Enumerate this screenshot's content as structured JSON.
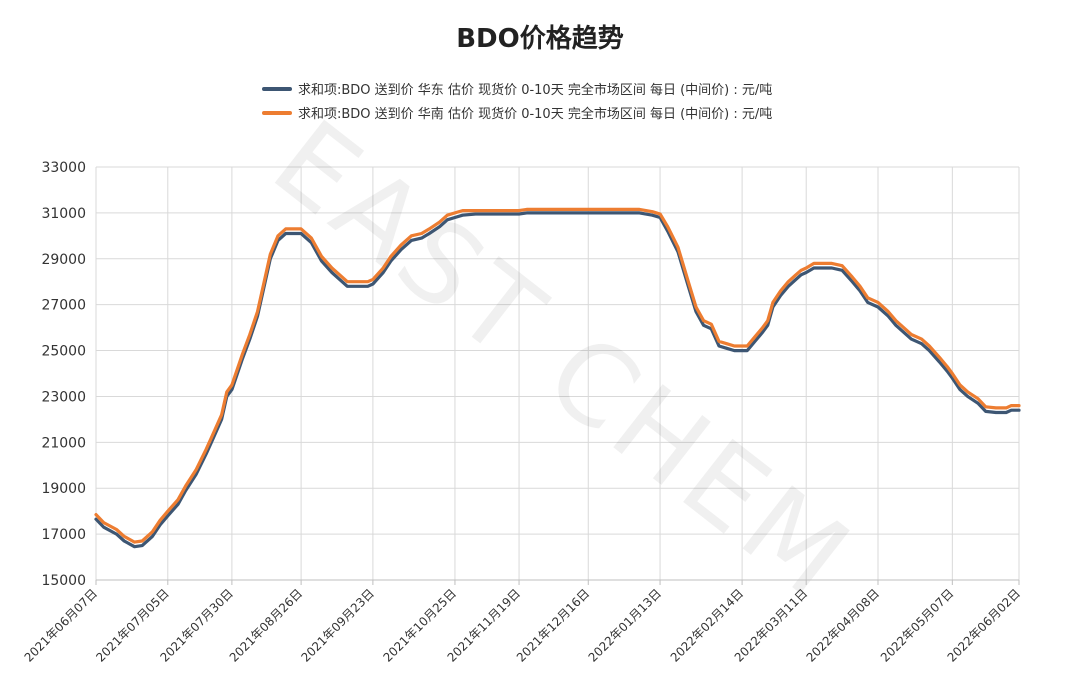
{
  "chart_data": {
    "type": "line",
    "title": "BDO价格趋势",
    "xlabel": "",
    "ylabel": "",
    "ylim": [
      15000,
      33000
    ],
    "yticks": [
      "15000",
      "17000",
      "19000",
      "21000",
      "23000",
      "25000",
      "27000",
      "29000",
      "31000",
      "33000"
    ],
    "grid": true,
    "legend_position": "top",
    "watermark": "EAST CHEM",
    "x_start": "2021-06-07",
    "x_end": "2022-06-02",
    "xticks": [
      "2021年06月07日",
      "2021年07月05日",
      "2021年07月30日",
      "2021年08月26日",
      "2021年09月23日",
      "2021年10月25日",
      "2021年11月19日",
      "2021年12月16日",
      "2022年01月13日",
      "2022年02月14日",
      "2022年03月11日",
      "2022年04月08日",
      "2022年05月07日",
      "2022年06月02日"
    ],
    "series": [
      {
        "name": "求和项:BDO 送到价 华东 估价 现货价 0-10天 完全市场区间 每日 (中间价) : 元/吨",
        "color": "#3d5673",
        "points": [
          [
            "2021-06-07",
            17650
          ],
          [
            "2021-06-10",
            17300
          ],
          [
            "2021-06-15",
            17000
          ],
          [
            "2021-06-18",
            16700
          ],
          [
            "2021-06-22",
            16450
          ],
          [
            "2021-06-25",
            16500
          ],
          [
            "2021-06-29",
            16900
          ],
          [
            "2021-07-02",
            17400
          ],
          [
            "2021-07-05",
            17800
          ],
          [
            "2021-07-09",
            18300
          ],
          [
            "2021-07-12",
            18900
          ],
          [
            "2021-07-16",
            19600
          ],
          [
            "2021-07-20",
            20500
          ],
          [
            "2021-07-22",
            21000
          ],
          [
            "2021-07-26",
            22000
          ],
          [
            "2021-07-28",
            23000
          ],
          [
            "2021-07-30",
            23300
          ],
          [
            "2021-08-03",
            24600
          ],
          [
            "2021-08-06",
            25500
          ],
          [
            "2021-08-09",
            26500
          ],
          [
            "2021-08-12",
            28000
          ],
          [
            "2021-08-14",
            29000
          ],
          [
            "2021-08-17",
            29800
          ],
          [
            "2021-08-20",
            30100
          ],
          [
            "2021-08-23",
            30100
          ],
          [
            "2021-08-26",
            30100
          ],
          [
            "2021-08-30",
            29700
          ],
          [
            "2021-09-03",
            28900
          ],
          [
            "2021-09-07",
            28400
          ],
          [
            "2021-09-10",
            28100
          ],
          [
            "2021-09-13",
            27800
          ],
          [
            "2021-09-16",
            27800
          ],
          [
            "2021-09-21",
            27800
          ],
          [
            "2021-09-23",
            27900
          ],
          [
            "2021-09-27",
            28400
          ],
          [
            "2021-09-30",
            28900
          ],
          [
            "2021-10-04",
            29400
          ],
          [
            "2021-10-08",
            29800
          ],
          [
            "2021-10-12",
            29900
          ],
          [
            "2021-10-15",
            30100
          ],
          [
            "2021-10-19",
            30400
          ],
          [
            "2021-10-22",
            30700
          ],
          [
            "2021-10-25",
            30800
          ],
          [
            "2021-10-28",
            30900
          ],
          [
            "2021-11-02",
            30950
          ],
          [
            "2021-11-10",
            30950
          ],
          [
            "2021-11-19",
            30950
          ],
          [
            "2021-11-22",
            31000
          ],
          [
            "2021-12-01",
            31000
          ],
          [
            "2021-12-16",
            31000
          ],
          [
            "2022-01-05",
            31000
          ],
          [
            "2022-01-10",
            30900
          ],
          [
            "2022-01-13",
            30800
          ],
          [
            "2022-01-16",
            30200
          ],
          [
            "2022-01-20",
            29300
          ],
          [
            "2022-01-24",
            27800
          ],
          [
            "2022-01-27",
            26700
          ],
          [
            "2022-01-30",
            26100
          ],
          [
            "2022-02-02",
            25950
          ],
          [
            "2022-02-05",
            25200
          ],
          [
            "2022-02-08",
            25100
          ],
          [
            "2022-02-11",
            25000
          ],
          [
            "2022-02-14",
            25000
          ],
          [
            "2022-02-16",
            25000
          ],
          [
            "2022-02-19",
            25400
          ],
          [
            "2022-02-22",
            25800
          ],
          [
            "2022-02-24",
            26100
          ],
          [
            "2022-02-26",
            26900
          ],
          [
            "2022-03-01",
            27400
          ],
          [
            "2022-03-04",
            27800
          ],
          [
            "2022-03-07",
            28100
          ],
          [
            "2022-03-09",
            28300
          ],
          [
            "2022-03-11",
            28400
          ],
          [
            "2022-03-14",
            28600
          ],
          [
            "2022-03-21",
            28600
          ],
          [
            "2022-03-25",
            28500
          ],
          [
            "2022-03-29",
            28000
          ],
          [
            "2022-04-01",
            27600
          ],
          [
            "2022-04-04",
            27100
          ],
          [
            "2022-04-08",
            26900
          ],
          [
            "2022-04-12",
            26500
          ],
          [
            "2022-04-15",
            26100
          ],
          [
            "2022-04-18",
            25800
          ],
          [
            "2022-04-21",
            25500
          ],
          [
            "2022-04-25",
            25300
          ],
          [
            "2022-04-28",
            25000
          ],
          [
            "2022-05-02",
            24500
          ],
          [
            "2022-05-05",
            24100
          ],
          [
            "2022-05-07",
            23800
          ],
          [
            "2022-05-10",
            23300
          ],
          [
            "2022-05-13",
            23000
          ],
          [
            "2022-05-17",
            22700
          ],
          [
            "2022-05-20",
            22350
          ],
          [
            "2022-05-24",
            22300
          ],
          [
            "2022-05-28",
            22300
          ],
          [
            "2022-05-30",
            22400
          ],
          [
            "2022-06-02",
            22400
          ]
        ]
      },
      {
        "name": "求和项:BDO 送到价 华南 估价 现货价 0-10天 完全市场区间 每日 (中间价) : 元/吨",
        "color": "#ed7d31",
        "points": [
          [
            "2021-06-07",
            17850
          ],
          [
            "2021-06-10",
            17500
          ],
          [
            "2021-06-15",
            17200
          ],
          [
            "2021-06-18",
            16900
          ],
          [
            "2021-06-22",
            16650
          ],
          [
            "2021-06-25",
            16700
          ],
          [
            "2021-06-29",
            17100
          ],
          [
            "2021-07-02",
            17600
          ],
          [
            "2021-07-05",
            18000
          ],
          [
            "2021-07-09",
            18500
          ],
          [
            "2021-07-12",
            19100
          ],
          [
            "2021-07-16",
            19800
          ],
          [
            "2021-07-20",
            20700
          ],
          [
            "2021-07-22",
            21200
          ],
          [
            "2021-07-26",
            22200
          ],
          [
            "2021-07-28",
            23200
          ],
          [
            "2021-07-30",
            23500
          ],
          [
            "2021-08-03",
            24800
          ],
          [
            "2021-08-06",
            25700
          ],
          [
            "2021-08-09",
            26700
          ],
          [
            "2021-08-12",
            28200
          ],
          [
            "2021-08-14",
            29200
          ],
          [
            "2021-08-17",
            30000
          ],
          [
            "2021-08-20",
            30300
          ],
          [
            "2021-08-23",
            30300
          ],
          [
            "2021-08-26",
            30300
          ],
          [
            "2021-08-30",
            29900
          ],
          [
            "2021-09-03",
            29100
          ],
          [
            "2021-09-07",
            28600
          ],
          [
            "2021-09-10",
            28300
          ],
          [
            "2021-09-13",
            28000
          ],
          [
            "2021-09-16",
            28000
          ],
          [
            "2021-09-21",
            28000
          ],
          [
            "2021-09-23",
            28100
          ],
          [
            "2021-09-27",
            28600
          ],
          [
            "2021-09-30",
            29100
          ],
          [
            "2021-10-04",
            29600
          ],
          [
            "2021-10-08",
            30000
          ],
          [
            "2021-10-12",
            30100
          ],
          [
            "2021-10-15",
            30300
          ],
          [
            "2021-10-19",
            30600
          ],
          [
            "2021-10-22",
            30900
          ],
          [
            "2021-10-25",
            31000
          ],
          [
            "2021-10-28",
            31100
          ],
          [
            "2021-11-02",
            31100
          ],
          [
            "2021-11-10",
            31100
          ],
          [
            "2021-11-19",
            31100
          ],
          [
            "2021-11-22",
            31150
          ],
          [
            "2021-12-01",
            31150
          ],
          [
            "2021-12-16",
            31150
          ],
          [
            "2022-01-05",
            31150
          ],
          [
            "2022-01-10",
            31050
          ],
          [
            "2022-01-13",
            30950
          ],
          [
            "2022-01-16",
            30400
          ],
          [
            "2022-01-20",
            29500
          ],
          [
            "2022-01-24",
            28000
          ],
          [
            "2022-01-27",
            26900
          ],
          [
            "2022-01-30",
            26300
          ],
          [
            "2022-02-02",
            26150
          ],
          [
            "2022-02-05",
            25400
          ],
          [
            "2022-02-08",
            25300
          ],
          [
            "2022-02-11",
            25200
          ],
          [
            "2022-02-14",
            25200
          ],
          [
            "2022-02-16",
            25200
          ],
          [
            "2022-02-19",
            25600
          ],
          [
            "2022-02-22",
            26000
          ],
          [
            "2022-02-24",
            26300
          ],
          [
            "2022-02-26",
            27100
          ],
          [
            "2022-03-01",
            27600
          ],
          [
            "2022-03-04",
            28000
          ],
          [
            "2022-03-07",
            28300
          ],
          [
            "2022-03-09",
            28500
          ],
          [
            "2022-03-11",
            28600
          ],
          [
            "2022-03-14",
            28800
          ],
          [
            "2022-03-21",
            28800
          ],
          [
            "2022-03-25",
            28700
          ],
          [
            "2022-03-29",
            28200
          ],
          [
            "2022-04-01",
            27800
          ],
          [
            "2022-04-04",
            27300
          ],
          [
            "2022-04-08",
            27100
          ],
          [
            "2022-04-12",
            26700
          ],
          [
            "2022-04-15",
            26300
          ],
          [
            "2022-04-18",
            26000
          ],
          [
            "2022-04-21",
            25700
          ],
          [
            "2022-04-25",
            25500
          ],
          [
            "2022-04-28",
            25200
          ],
          [
            "2022-05-02",
            24700
          ],
          [
            "2022-05-05",
            24300
          ],
          [
            "2022-05-07",
            24000
          ],
          [
            "2022-05-10",
            23500
          ],
          [
            "2022-05-13",
            23200
          ],
          [
            "2022-05-17",
            22900
          ],
          [
            "2022-05-20",
            22550
          ],
          [
            "2022-05-24",
            22500
          ],
          [
            "2022-05-28",
            22500
          ],
          [
            "2022-05-30",
            22600
          ],
          [
            "2022-06-02",
            22600
          ]
        ]
      }
    ]
  }
}
